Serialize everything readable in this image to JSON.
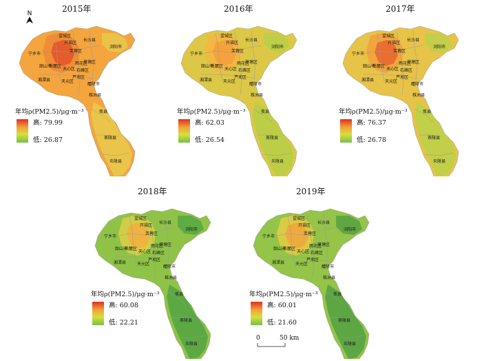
{
  "legend_title": "年均ρ(PM2.5)/μg·m⁻³",
  "hi_prefix": "高: ",
  "lo_prefix": "低: ",
  "north": "N",
  "scale": {
    "zero": "0",
    "dist": "50 km"
  },
  "district_labels": [
    "望城区",
    "开福区",
    "长沙县",
    "宁乡市",
    "芙蓉区",
    "浏阳市",
    "岳麓区",
    "雨花区",
    "天心区",
    "韶山市",
    "石峰区",
    "荷塘区",
    "芦淞区",
    "湘潭县",
    "天元区",
    "醴陵市",
    "株洲县",
    "攸县",
    "茶陵县",
    "炎陵县"
  ],
  "panels": [
    {
      "year": "2015年",
      "high": "79.99",
      "low": "26.87",
      "palette": [
        "#e45a2a",
        "#ee8b35",
        "#f4a53d",
        "#e9c64a"
      ]
    },
    {
      "year": "2016年",
      "high": "62.03",
      "low": "26.54",
      "palette": [
        "#f2a03c",
        "#f2b742",
        "#dcc846",
        "#b9cf47"
      ]
    },
    {
      "year": "2017年",
      "high": "76.37",
      "low": "26.78",
      "palette": [
        "#e86a2f",
        "#f0a43c",
        "#e7c347",
        "#bfd04a"
      ]
    },
    {
      "year": "2018年",
      "high": "60.08",
      "low": "22.21",
      "palette": [
        "#f1b040",
        "#d4cf47",
        "#8fc347",
        "#5aa844"
      ]
    },
    {
      "year": "2019年",
      "high": "60.01",
      "low": "21.60",
      "palette": [
        "#f0a83e",
        "#dccb46",
        "#94c448",
        "#5aa444"
      ]
    }
  ]
}
